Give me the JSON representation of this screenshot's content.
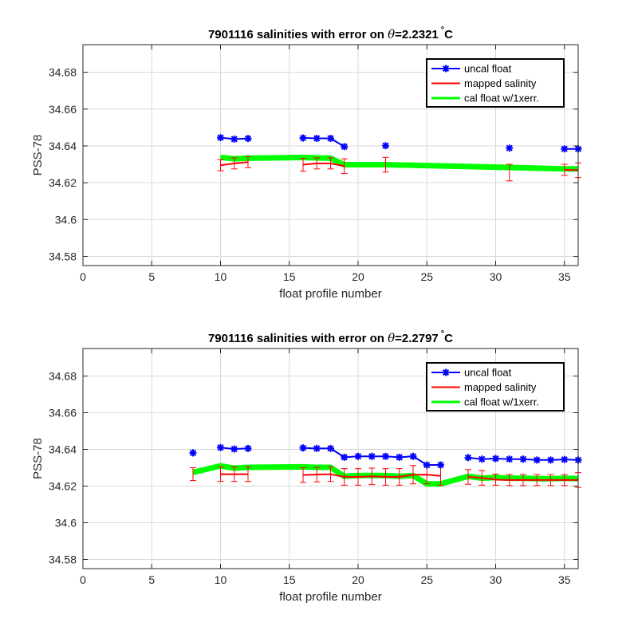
{
  "chart_data": [
    {
      "type": "line",
      "title_prefix": "7901116 salinities with error on ",
      "title_symbol": "θ",
      "title_value": "=2.2321",
      "title_unit": "C",
      "xlabel": "float profile number",
      "ylabel": "PSS-78",
      "xlim": [
        0,
        36
      ],
      "ylim": [
        34.575,
        34.695
      ],
      "xticks": [
        0,
        5,
        10,
        15,
        20,
        25,
        30,
        35
      ],
      "yticks": [
        34.58,
        34.6,
        34.62,
        34.64,
        34.66,
        34.68
      ],
      "ytick_labels": [
        "34.58",
        "34.6",
        "34.62",
        "34.64",
        "34.66",
        "34.68"
      ],
      "grid": true,
      "legend_position": "top-right",
      "series": [
        {
          "name": "uncal float",
          "color": "#0000ff",
          "style": "line-with-star-markers",
          "segments": [
            {
              "x": [
                10,
                11,
                12
              ],
              "y": [
                34.6445,
                34.6437,
                34.644
              ]
            },
            {
              "x": [
                16,
                17,
                18,
                19
              ],
              "y": [
                34.6443,
                34.6441,
                34.6441,
                34.6396
              ]
            },
            {
              "x": [
                22
              ],
              "y": [
                34.6401
              ]
            },
            {
              "x": [
                31
              ],
              "y": [
                34.6388
              ]
            },
            {
              "x": [
                35,
                36
              ],
              "y": [
                34.6384,
                34.6384
              ]
            }
          ]
        },
        {
          "name": "mapped salinity",
          "color": "#ff0000",
          "style": "line-with-errorbars",
          "segments": [
            {
              "x": [
                10,
                11,
                12
              ],
              "y": [
                34.6295,
                34.6305,
                34.6312
              ],
              "err": [
                0.003,
                0.003,
                0.003
              ]
            },
            {
              "x": [
                16,
                17,
                18,
                19
              ],
              "y": [
                34.6298,
                34.6305,
                34.6305,
                34.629
              ],
              "err": [
                0.0035,
                0.003,
                0.003,
                0.004
              ]
            },
            {
              "x": [
                22
              ],
              "y": [
                34.6298
              ],
              "err": [
                0.004
              ]
            },
            {
              "x": [
                31
              ],
              "y": [
                34.6255
              ],
              "err": [
                0.0045
              ]
            },
            {
              "x": [
                35,
                36
              ],
              "y": [
                34.627,
                34.6268
              ],
              "err": [
                0.003,
                0.004
              ]
            }
          ]
        },
        {
          "name": "cal float w/1xerr.",
          "color": "#00ff00",
          "style": "thick-band",
          "x": [
            10,
            11,
            12,
            16,
            17,
            18,
            19,
            22,
            31,
            35,
            36
          ],
          "y": [
            34.6338,
            34.633,
            34.6333,
            34.6337,
            34.6335,
            34.6333,
            34.6298,
            34.6298,
            34.6283,
            34.6275,
            34.6275
          ]
        }
      ]
    },
    {
      "type": "line",
      "title_prefix": "7901116 salinities with error on ",
      "title_symbol": "θ",
      "title_value": "=2.2797",
      "title_unit": "C",
      "xlabel": "float profile number",
      "ylabel": "PSS-78",
      "xlim": [
        0,
        36
      ],
      "ylim": [
        34.575,
        34.695
      ],
      "xticks": [
        0,
        5,
        10,
        15,
        20,
        25,
        30,
        35
      ],
      "yticks": [
        34.58,
        34.6,
        34.62,
        34.64,
        34.66,
        34.68
      ],
      "ytick_labels": [
        "34.58",
        "34.6",
        "34.62",
        "34.64",
        "34.66",
        "34.68"
      ],
      "grid": true,
      "legend_position": "top-right",
      "series": [
        {
          "name": "uncal float",
          "color": "#0000ff",
          "style": "line-with-star-markers",
          "segments": [
            {
              "x": [
                8
              ],
              "y": [
                34.6381
              ]
            },
            {
              "x": [
                10,
                11,
                12
              ],
              "y": [
                34.641,
                34.6402,
                34.6405
              ]
            },
            {
              "x": [
                16,
                17,
                18,
                19,
                20,
                21,
                22,
                23,
                24,
                25,
                26
              ],
              "y": [
                34.6408,
                34.6405,
                34.6405,
                34.6357,
                34.6362,
                34.6362,
                34.6362,
                34.6357,
                34.6362,
                34.6315,
                34.6315
              ]
            },
            {
              "x": [
                28,
                29,
                30,
                31,
                32,
                33,
                34,
                35,
                36
              ],
              "y": [
                34.6355,
                34.6347,
                34.635,
                34.6347,
                34.6347,
                34.6342,
                34.6342,
                34.6345,
                34.6342
              ]
            }
          ]
        },
        {
          "name": "mapped salinity",
          "color": "#ff0000",
          "style": "line-with-errorbars",
          "segments": [
            {
              "x": [
                8
              ],
              "y": [
                34.6265
              ],
              "err": [
                0.0035
              ]
            },
            {
              "x": [
                10,
                11,
                12
              ],
              "y": [
                34.6265,
                34.6265,
                34.6265
              ],
              "err": [
                0.004,
                0.004,
                0.004
              ]
            },
            {
              "x": [
                16,
                17,
                18,
                19,
                20,
                21,
                22,
                23,
                24,
                25,
                26
              ],
              "y": [
                34.626,
                34.6263,
                34.6265,
                34.625,
                34.625,
                34.6253,
                34.625,
                34.625,
                34.6262,
                34.6262,
                34.6255
              ],
              "err": [
                0.004,
                0.004,
                0.004,
                0.0045,
                0.0045,
                0.0045,
                0.0045,
                0.0045,
                0.005,
                0.005,
                0.005
              ]
            },
            {
              "x": [
                28,
                29,
                30,
                31,
                32,
                33,
                34,
                35,
                36
              ],
              "y": [
                34.625,
                34.6245,
                34.6235,
                34.6233,
                34.6233,
                34.6233,
                34.6233,
                34.6233,
                34.6233
              ],
              "err": [
                0.004,
                0.004,
                0.003,
                0.003,
                0.003,
                0.003,
                0.003,
                0.003,
                0.004
              ]
            }
          ]
        },
        {
          "name": "cal float w/1xerr.",
          "color": "#00ff00",
          "style": "thick-band",
          "x": [
            8,
            10,
            11,
            12,
            16,
            17,
            18,
            19,
            20,
            21,
            22,
            23,
            24,
            25,
            26,
            28,
            29,
            30,
            31,
            32,
            33,
            34,
            35,
            36
          ],
          "y": [
            34.6275,
            34.631,
            34.6298,
            34.6302,
            34.6305,
            34.6302,
            34.6302,
            34.6253,
            34.6258,
            34.6258,
            34.6258,
            34.6253,
            34.6258,
            34.6212,
            34.6212,
            34.6253,
            34.6243,
            34.6247,
            34.6243,
            34.6243,
            34.624,
            34.624,
            34.6242,
            34.624
          ]
        }
      ]
    }
  ]
}
